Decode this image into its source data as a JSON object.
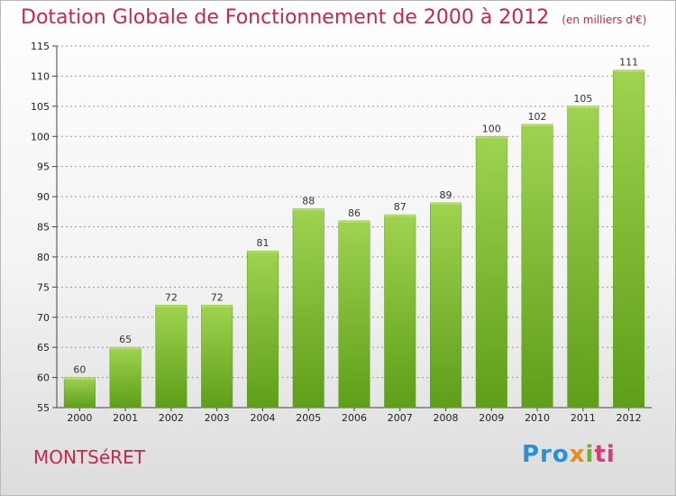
{
  "chart_data": {
    "type": "bar",
    "title": "Dotation Globale de Fonctionnement de 2000 à 2012",
    "subtitle": "(en milliers d'€)",
    "categories": [
      "2000",
      "2001",
      "2002",
      "2003",
      "2004",
      "2005",
      "2006",
      "2007",
      "2008",
      "2009",
      "2010",
      "2011",
      "2012"
    ],
    "values": [
      60,
      65,
      72,
      72,
      81,
      88,
      86,
      87,
      89,
      100,
      102,
      105,
      111
    ],
    "ylim": [
      55,
      115
    ],
    "yticks": [
      55,
      60,
      65,
      70,
      75,
      80,
      85,
      90,
      95,
      100,
      105,
      110,
      115
    ],
    "grid": true,
    "bar_color": "#7fbf3a",
    "grid_color": "#999999"
  },
  "footer": {
    "commune": "MONTSéRET",
    "logo": [
      "Pro",
      "x",
      "i",
      "ti"
    ]
  }
}
